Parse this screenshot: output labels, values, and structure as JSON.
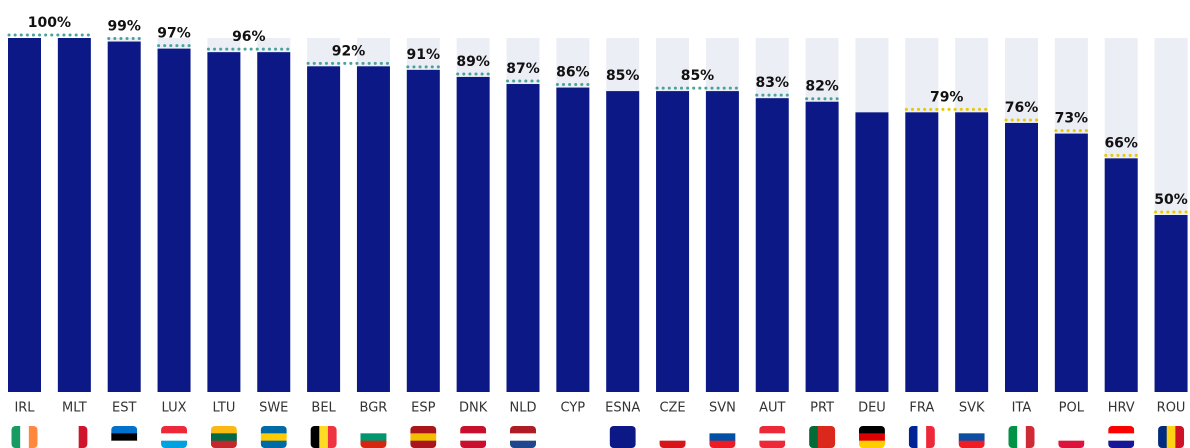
{
  "chart_data": {
    "type": "bar",
    "categories": [
      "IRL",
      "MLT",
      "EST",
      "LUX",
      "LTU",
      "SWE",
      "BEL",
      "BGR",
      "ESP",
      "DNK",
      "NLD",
      "CYP",
      "ESNA",
      "CZE",
      "SVN",
      "AUT",
      "PRT",
      "DEU",
      "FRA",
      "SVK",
      "ITA",
      "POL",
      "HRV",
      "ROU"
    ],
    "values": [
      100,
      100,
      99,
      97,
      96,
      96,
      92,
      92,
      91,
      89,
      87,
      86,
      85,
      85,
      85,
      83,
      82,
      79,
      79,
      79,
      76,
      73,
      66,
      50
    ],
    "value_labels": [
      "100%",
      null,
      "99%",
      "97%",
      "96%",
      null,
      "92%",
      null,
      "91%",
      "89%",
      "87%",
      "86%",
      "85%",
      "85%",
      null,
      "83%",
      "82%",
      null,
      "79%",
      null,
      "76%",
      "73%",
      "66%",
      "50%"
    ],
    "color": "#0b1886",
    "ylim": [
      0,
      100
    ]
  }
}
